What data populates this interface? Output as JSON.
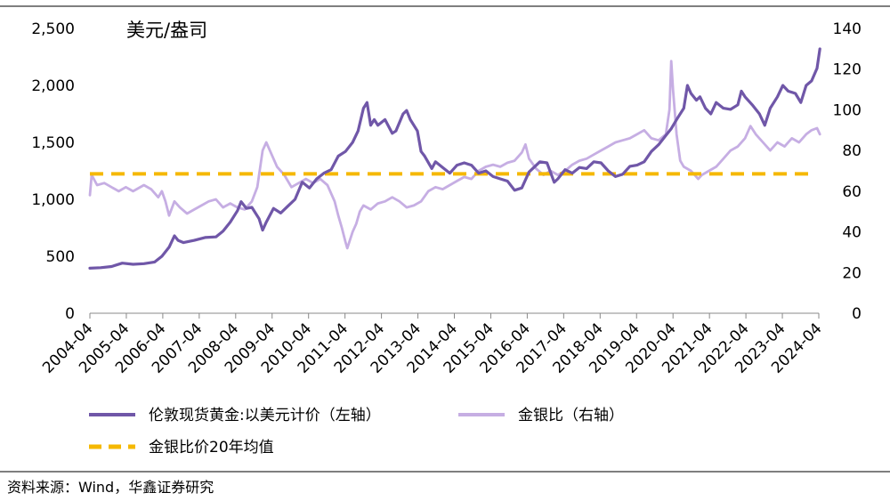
{
  "chart_data": {
    "type": "line",
    "title": "",
    "unit_label": "美元/盎司",
    "x_categories": [
      "2004-04",
      "2005-04",
      "2006-04",
      "2007-04",
      "2008-04",
      "2009-04",
      "2010-04",
      "2011-04",
      "2012-04",
      "2013-04",
      "2014-04",
      "2015-04",
      "2016-04",
      "2017-04",
      "2018-04",
      "2019-04",
      "2020-04",
      "2021-04",
      "2022-04",
      "2023-04",
      "2024-04"
    ],
    "y_left": {
      "range": [
        0,
        2500
      ],
      "ticks": [
        0,
        500,
        1000,
        1500,
        2000,
        2500
      ],
      "tick_labels": [
        "0",
        "500",
        "1,000",
        "1,500",
        "2,000",
        "2,500"
      ]
    },
    "y_right": {
      "range": [
        0,
        140
      ],
      "ticks": [
        0,
        20,
        40,
        60,
        80,
        100,
        120,
        140
      ],
      "tick_labels": [
        "0",
        "20",
        "40",
        "60",
        "80",
        "100",
        "120",
        "140"
      ]
    },
    "series": [
      {
        "name": "伦敦现货黄金:以美元计价（左轴）",
        "axis": "left",
        "color": "#7057a8",
        "style": "solid",
        "points": [
          [
            2004.0,
            395
          ],
          [
            2004.3,
            400
          ],
          [
            2004.6,
            410
          ],
          [
            2004.9,
            440
          ],
          [
            2005.2,
            430
          ],
          [
            2005.5,
            435
          ],
          [
            2005.8,
            450
          ],
          [
            2006.0,
            500
          ],
          [
            2006.2,
            580
          ],
          [
            2006.35,
            680
          ],
          [
            2006.45,
            640
          ],
          [
            2006.6,
            620
          ],
          [
            2006.9,
            640
          ],
          [
            2007.2,
            665
          ],
          [
            2007.5,
            670
          ],
          [
            2007.7,
            720
          ],
          [
            2007.9,
            800
          ],
          [
            2008.1,
            900
          ],
          [
            2008.2,
            980
          ],
          [
            2008.35,
            920
          ],
          [
            2008.5,
            930
          ],
          [
            2008.7,
            830
          ],
          [
            2008.8,
            730
          ],
          [
            2008.9,
            800
          ],
          [
            2009.1,
            920
          ],
          [
            2009.3,
            880
          ],
          [
            2009.5,
            940
          ],
          [
            2009.7,
            1000
          ],
          [
            2009.9,
            1150
          ],
          [
            2010.1,
            1100
          ],
          [
            2010.3,
            1180
          ],
          [
            2010.5,
            1230
          ],
          [
            2010.7,
            1260
          ],
          [
            2010.9,
            1380
          ],
          [
            2011.1,
            1420
          ],
          [
            2011.3,
            1500
          ],
          [
            2011.45,
            1600
          ],
          [
            2011.6,
            1800
          ],
          [
            2011.7,
            1850
          ],
          [
            2011.8,
            1650
          ],
          [
            2011.9,
            1700
          ],
          [
            2012.0,
            1650
          ],
          [
            2012.2,
            1700
          ],
          [
            2012.4,
            1580
          ],
          [
            2012.5,
            1600
          ],
          [
            2012.7,
            1750
          ],
          [
            2012.8,
            1780
          ],
          [
            2012.9,
            1700
          ],
          [
            2013.1,
            1600
          ],
          [
            2013.2,
            1420
          ],
          [
            2013.3,
            1380
          ],
          [
            2013.5,
            1270
          ],
          [
            2013.6,
            1330
          ],
          [
            2013.8,
            1280
          ],
          [
            2014.0,
            1230
          ],
          [
            2014.2,
            1300
          ],
          [
            2014.4,
            1320
          ],
          [
            2014.6,
            1300
          ],
          [
            2014.8,
            1230
          ],
          [
            2015.0,
            1250
          ],
          [
            2015.2,
            1200
          ],
          [
            2015.4,
            1180
          ],
          [
            2015.6,
            1160
          ],
          [
            2015.8,
            1080
          ],
          [
            2016.0,
            1100
          ],
          [
            2016.2,
            1240
          ],
          [
            2016.5,
            1330
          ],
          [
            2016.7,
            1320
          ],
          [
            2016.9,
            1150
          ],
          [
            2017.0,
            1180
          ],
          [
            2017.2,
            1260
          ],
          [
            2017.4,
            1230
          ],
          [
            2017.6,
            1280
          ],
          [
            2017.8,
            1270
          ],
          [
            2018.0,
            1330
          ],
          [
            2018.2,
            1320
          ],
          [
            2018.4,
            1250
          ],
          [
            2018.6,
            1200
          ],
          [
            2018.8,
            1220
          ],
          [
            2019.0,
            1290
          ],
          [
            2019.2,
            1300
          ],
          [
            2019.4,
            1330
          ],
          [
            2019.6,
            1420
          ],
          [
            2019.8,
            1480
          ],
          [
            2020.0,
            1560
          ],
          [
            2020.15,
            1620
          ],
          [
            2020.3,
            1700
          ],
          [
            2020.5,
            1800
          ],
          [
            2020.6,
            2000
          ],
          [
            2020.7,
            1930
          ],
          [
            2020.85,
            1870
          ],
          [
            2020.95,
            1900
          ],
          [
            2021.1,
            1800
          ],
          [
            2021.25,
            1750
          ],
          [
            2021.4,
            1850
          ],
          [
            2021.6,
            1800
          ],
          [
            2021.8,
            1790
          ],
          [
            2022.0,
            1830
          ],
          [
            2022.1,
            1950
          ],
          [
            2022.2,
            1900
          ],
          [
            2022.4,
            1830
          ],
          [
            2022.6,
            1750
          ],
          [
            2022.75,
            1650
          ],
          [
            2022.9,
            1800
          ],
          [
            2023.1,
            1900
          ],
          [
            2023.25,
            2000
          ],
          [
            2023.4,
            1950
          ],
          [
            2023.6,
            1930
          ],
          [
            2023.75,
            1850
          ],
          [
            2023.9,
            2000
          ],
          [
            2024.05,
            2040
          ],
          [
            2024.2,
            2150
          ],
          [
            2024.28,
            2320
          ]
        ]
      },
      {
        "name": "金银比（右轴）",
        "axis": "right",
        "color": "#c6aee3",
        "style": "solid",
        "points": [
          [
            2004.0,
            58
          ],
          [
            2004.05,
            68
          ],
          [
            2004.2,
            63
          ],
          [
            2004.4,
            64
          ],
          [
            2004.6,
            62
          ],
          [
            2004.8,
            60
          ],
          [
            2005.0,
            62
          ],
          [
            2005.2,
            60
          ],
          [
            2005.5,
            63
          ],
          [
            2005.7,
            61
          ],
          [
            2005.9,
            57
          ],
          [
            2006.0,
            60
          ],
          [
            2006.1,
            55
          ],
          [
            2006.2,
            48
          ],
          [
            2006.35,
            55
          ],
          [
            2006.5,
            52
          ],
          [
            2006.7,
            49
          ],
          [
            2006.9,
            51
          ],
          [
            2007.1,
            53
          ],
          [
            2007.3,
            55
          ],
          [
            2007.5,
            56
          ],
          [
            2007.7,
            52
          ],
          [
            2007.9,
            54
          ],
          [
            2008.1,
            52
          ],
          [
            2008.3,
            51
          ],
          [
            2008.5,
            55
          ],
          [
            2008.65,
            62
          ],
          [
            2008.8,
            80
          ],
          [
            2008.9,
            84
          ],
          [
            2009.0,
            80
          ],
          [
            2009.2,
            72
          ],
          [
            2009.4,
            68
          ],
          [
            2009.6,
            62
          ],
          [
            2009.8,
            64
          ],
          [
            2010.0,
            66
          ],
          [
            2010.2,
            64
          ],
          [
            2010.4,
            66
          ],
          [
            2010.6,
            63
          ],
          [
            2010.8,
            55
          ],
          [
            2010.9,
            48
          ],
          [
            2011.0,
            42
          ],
          [
            2011.1,
            35
          ],
          [
            2011.15,
            32
          ],
          [
            2011.3,
            40
          ],
          [
            2011.4,
            44
          ],
          [
            2011.5,
            50
          ],
          [
            2011.6,
            53
          ],
          [
            2011.8,
            51
          ],
          [
            2012.0,
            54
          ],
          [
            2012.2,
            55
          ],
          [
            2012.4,
            57
          ],
          [
            2012.6,
            55
          ],
          [
            2012.8,
            52
          ],
          [
            2013.0,
            53
          ],
          [
            2013.2,
            55
          ],
          [
            2013.4,
            60
          ],
          [
            2013.6,
            62
          ],
          [
            2013.8,
            61
          ],
          [
            2014.0,
            63
          ],
          [
            2014.2,
            65
          ],
          [
            2014.4,
            67
          ],
          [
            2014.6,
            66
          ],
          [
            2014.8,
            70
          ],
          [
            2015.0,
            72
          ],
          [
            2015.2,
            73
          ],
          [
            2015.4,
            72
          ],
          [
            2015.6,
            74
          ],
          [
            2015.8,
            75
          ],
          [
            2016.0,
            79
          ],
          [
            2016.1,
            83
          ],
          [
            2016.2,
            76
          ],
          [
            2016.4,
            71
          ],
          [
            2016.6,
            68
          ],
          [
            2016.8,
            70
          ],
          [
            2017.0,
            68
          ],
          [
            2017.2,
            70
          ],
          [
            2017.4,
            73
          ],
          [
            2017.6,
            75
          ],
          [
            2017.8,
            76
          ],
          [
            2018.0,
            78
          ],
          [
            2018.2,
            80
          ],
          [
            2018.4,
            82
          ],
          [
            2018.6,
            84
          ],
          [
            2018.8,
            85
          ],
          [
            2019.0,
            86
          ],
          [
            2019.2,
            88
          ],
          [
            2019.4,
            90
          ],
          [
            2019.6,
            86
          ],
          [
            2019.8,
            85
          ],
          [
            2020.0,
            88
          ],
          [
            2020.1,
            100
          ],
          [
            2020.15,
            124
          ],
          [
            2020.2,
            110
          ],
          [
            2020.3,
            88
          ],
          [
            2020.4,
            75
          ],
          [
            2020.5,
            72
          ],
          [
            2020.7,
            70
          ],
          [
            2020.9,
            66
          ],
          [
            2021.0,
            68
          ],
          [
            2021.2,
            70
          ],
          [
            2021.4,
            72
          ],
          [
            2021.6,
            76
          ],
          [
            2021.8,
            80
          ],
          [
            2022.0,
            82
          ],
          [
            2022.2,
            86
          ],
          [
            2022.35,
            92
          ],
          [
            2022.5,
            88
          ],
          [
            2022.7,
            84
          ],
          [
            2022.9,
            80
          ],
          [
            2023.1,
            84
          ],
          [
            2023.3,
            82
          ],
          [
            2023.5,
            86
          ],
          [
            2023.7,
            84
          ],
          [
            2023.9,
            88
          ],
          [
            2024.05,
            90
          ],
          [
            2024.2,
            91
          ],
          [
            2024.28,
            88
          ]
        ]
      },
      {
        "name": "金银比价20年均值",
        "axis": "right",
        "color": "#f5b800",
        "style": "dashed",
        "constant": 68.5
      }
    ]
  },
  "legend": {
    "gold": "伦敦现货黄金:以美元计价（左轴）",
    "ratio": "金银比（右轴）",
    "avg": "金银比价20年均值"
  },
  "source": "资料来源：Wind，华鑫证券研究"
}
